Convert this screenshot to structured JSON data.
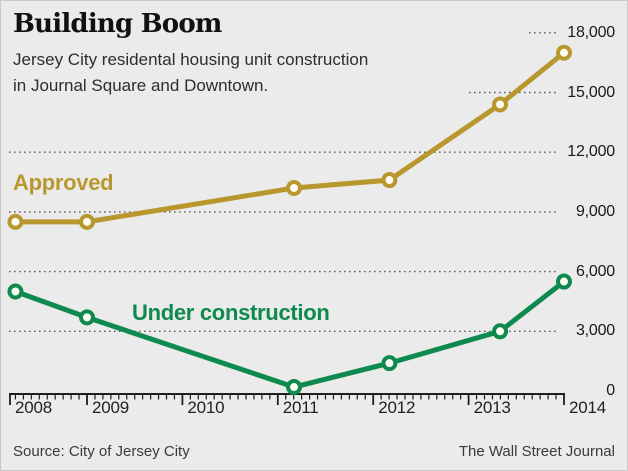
{
  "header": {
    "title": "Building Boom",
    "subtitle_line1": "Jersey City residental housing unit construction",
    "subtitle_line2": "in Journal Square and Downtown."
  },
  "footer": {
    "source": "Source: City of Jersey City",
    "credit": "The Wall Street Journal"
  },
  "colors": {
    "background": "#ebebeb",
    "border": "#c8c8c8",
    "approved": "#b8982e",
    "under_construction": "#0e8a4e",
    "grid": "#5d5d5d",
    "axis": "#1c1c1c"
  },
  "chart_data": {
    "type": "line",
    "title": "Building Boom",
    "subtitle": "Jersey City residental housing unit construction in Journal Square and Downtown.",
    "grid": "dotted-horizontal",
    "legend_position": "inline-labels",
    "x_axis": {
      "range": [
        2008.17,
        2014
      ],
      "tick_years": [
        2008,
        2009,
        2010,
        2011,
        2012,
        2013,
        2014
      ],
      "tick_labels": [
        "2008",
        "2009",
        "2010",
        "2011",
        "2012",
        "2013",
        "2014"
      ],
      "minor_tick_unit": "month"
    },
    "y_axis": {
      "range": [
        0,
        18000
      ],
      "side": "right",
      "ticks": [
        0,
        3000,
        6000,
        9000,
        12000,
        15000,
        18000
      ],
      "tick_labels": [
        "0",
        "3,000",
        "6,000",
        "9,000",
        "12,000",
        "15,000",
        "18,000"
      ]
    },
    "series": [
      {
        "name": "Approved",
        "color": "#b8982e",
        "x": [
          2008.25,
          2009,
          2011.17,
          2012.17,
          2013.33,
          2014
        ],
        "values": [
          8500,
          8500,
          10200,
          10600,
          14400,
          17000
        ]
      },
      {
        "name": "Under construction",
        "color": "#0e8a4e",
        "x": [
          2008.25,
          2009,
          2011.17,
          2012.17,
          2013.33,
          2014
        ],
        "values": [
          5000,
          3700,
          200,
          1400,
          3000,
          5500
        ]
      }
    ],
    "source": "Source: City of Jersey City",
    "credit": "The Wall Street Journal"
  }
}
